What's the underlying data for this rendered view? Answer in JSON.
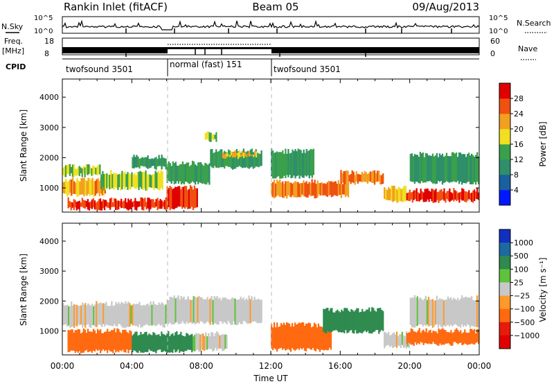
{
  "header": {
    "station": "Rankin Inlet (fitACF)",
    "beam": "Beam 05",
    "date": "09/Aug/2013"
  },
  "top_panels": {
    "nsky_label": "N.Sky",
    "nsky_ticks": [
      "10^5",
      "10^0"
    ],
    "nsearch_label": "N.Search",
    "freq_label_1": "Freq.",
    "freq_label_2": "[MHz]",
    "freq_ticks": [
      "18",
      "8"
    ],
    "nave_ticks": [
      "60",
      "0"
    ],
    "nave_label": "Nave",
    "cpid_label": "CPID",
    "cpid_modes": [
      {
        "name": "twofsound 3501",
        "start": 0,
        "end": 6
      },
      {
        "name": "normal (fast) 151",
        "start": 6,
        "end": 12
      },
      {
        "name": "twofsound 3501",
        "start": 12,
        "end": 24
      }
    ]
  },
  "axes": {
    "ylabel": "Slant Range [km]",
    "yticks": [
      1000,
      2000,
      3000,
      4000
    ],
    "ylim": [
      200,
      4600
    ],
    "xlabel": "Time UT",
    "xticks": [
      "00:00",
      "04:00",
      "08:00",
      "12:00",
      "16:00",
      "20:00",
      "00:00"
    ],
    "xlim_hours": [
      0,
      24
    ]
  },
  "colorbars": {
    "power": {
      "label": "Power [dB]",
      "ticks": [
        "4",
        "8",
        "12",
        "16",
        "20",
        "24",
        "28"
      ],
      "colors": [
        "#0018ff",
        "#1a5fa0",
        "#2f8f6a",
        "#3aa04c",
        "#f0e020",
        "#f2a020",
        "#f05010",
        "#e00000"
      ]
    },
    "velocity": {
      "label": "Velocity [m s⁻¹]",
      "ticks": [
        "1000",
        "500",
        "100",
        "25",
        "−25",
        "−100",
        "−500",
        "−1000"
      ],
      "colors": [
        "#1030c0",
        "#1c6aa0",
        "#2e8a4e",
        "#5fc23c",
        "#c8c8c8",
        "#ff9a2a",
        "#ff6a10",
        "#e81a0a",
        "#e00000"
      ]
    }
  },
  "chart_data": [
    {
      "type": "heatmap",
      "panel": "power",
      "xlabel": "Time UT",
      "ylabel": "Slant Range [km]",
      "x_unit": "hours UT",
      "y_unit": "km",
      "value_label": "Power [dB]",
      "blocks": [
        {
          "t0": 0.0,
          "t1": 2.2,
          "r0": 1350,
          "r1": 1800,
          "v": 16
        },
        {
          "t0": 0.0,
          "t1": 2.5,
          "r0": 700,
          "r1": 1350,
          "v": 22
        },
        {
          "t0": 0.3,
          "t1": 6.0,
          "r0": 250,
          "r1": 700,
          "v": 28
        },
        {
          "t0": 2.2,
          "t1": 5.8,
          "r0": 900,
          "r1": 1600,
          "v": 16
        },
        {
          "t0": 4.0,
          "t1": 6.0,
          "r0": 1600,
          "r1": 2100,
          "v": 12
        },
        {
          "t0": 6.0,
          "t1": 7.8,
          "r0": 250,
          "r1": 1100,
          "v": 28
        },
        {
          "t0": 6.0,
          "t1": 8.5,
          "r0": 1100,
          "r1": 1900,
          "v": 12
        },
        {
          "t0": 8.5,
          "t1": 11.5,
          "r0": 1600,
          "r1": 2300,
          "v": 12
        },
        {
          "t0": 9.2,
          "t1": 11.2,
          "r0": 1950,
          "r1": 2250,
          "v": 20
        },
        {
          "t0": 8.2,
          "t1": 8.9,
          "r0": 2500,
          "r1": 2900,
          "v": 16
        },
        {
          "t0": 12.0,
          "t1": 16.5,
          "r0": 650,
          "r1": 1300,
          "v": 24
        },
        {
          "t0": 12.0,
          "t1": 14.5,
          "r0": 1300,
          "r1": 2300,
          "v": 12
        },
        {
          "t0": 16.0,
          "t1": 18.5,
          "r0": 1100,
          "r1": 1600,
          "v": 24
        },
        {
          "t0": 18.5,
          "t1": 19.8,
          "r0": 500,
          "r1": 1100,
          "v": 20
        },
        {
          "t0": 19.8,
          "t1": 24.0,
          "r0": 500,
          "r1": 1000,
          "v": 28
        },
        {
          "t0": 20.0,
          "t1": 24.0,
          "r0": 1100,
          "r1": 2200,
          "v": 12
        }
      ]
    },
    {
      "type": "heatmap",
      "panel": "velocity",
      "xlabel": "Time UT",
      "ylabel": "Slant Range [km]",
      "x_unit": "hours UT",
      "y_unit": "km",
      "value_label": "Velocity [m s-1]",
      "blocks": [
        {
          "t0": 0.0,
          "t1": 6.0,
          "r0": 1100,
          "r1": 2000,
          "v": 0
        },
        {
          "t0": 0.3,
          "t1": 4.0,
          "r0": 250,
          "r1": 1100,
          "v": -300
        },
        {
          "t0": 4.0,
          "t1": 7.5,
          "r0": 250,
          "r1": 1000,
          "v": 300
        },
        {
          "t0": 6.0,
          "t1": 11.5,
          "r0": 1200,
          "r1": 2200,
          "v": 0
        },
        {
          "t0": 7.5,
          "t1": 9.5,
          "r0": 300,
          "r1": 1000,
          "v": 0
        },
        {
          "t0": 12.0,
          "t1": 15.5,
          "r0": 300,
          "r1": 1300,
          "v": -400
        },
        {
          "t0": 15.0,
          "t1": 18.5,
          "r0": 900,
          "r1": 1800,
          "v": 300
        },
        {
          "t0": 18.5,
          "t1": 20.0,
          "r0": 400,
          "r1": 1000,
          "v": 0
        },
        {
          "t0": 19.8,
          "t1": 24.0,
          "r0": 500,
          "r1": 1100,
          "v": -400
        },
        {
          "t0": 20.0,
          "t1": 24.0,
          "r0": 1100,
          "r1": 2200,
          "v": 0
        }
      ]
    }
  ]
}
